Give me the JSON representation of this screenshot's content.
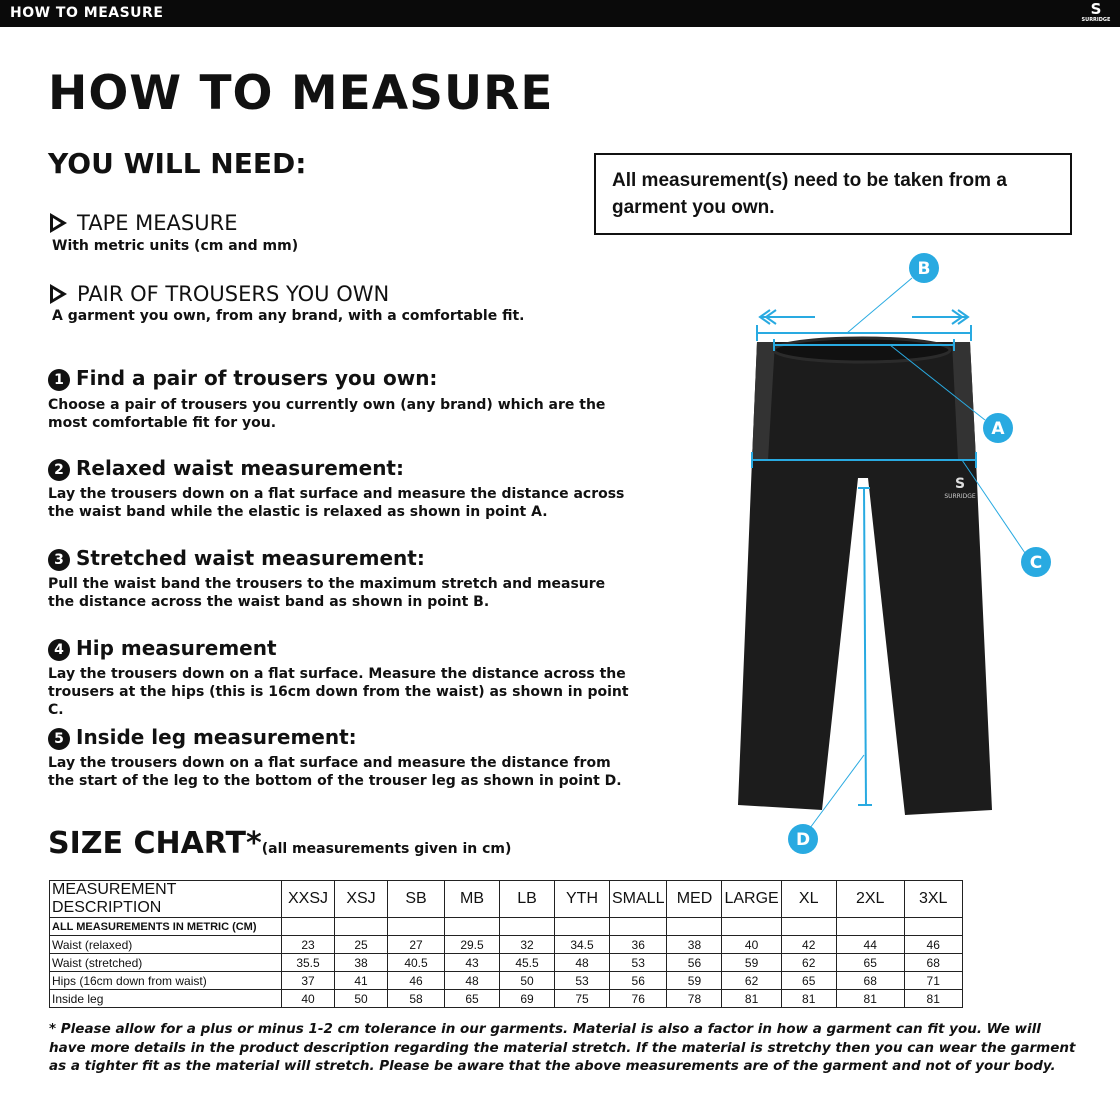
{
  "topbar": {
    "title": "HOW TO MEASURE",
    "brand": "SURRIDGE"
  },
  "heading": "HOW TO MEASURE",
  "need": {
    "title": "YOU WILL NEED:",
    "items": [
      {
        "label": "TAPE MEASURE",
        "desc": "With metric units (cm and mm)"
      },
      {
        "label": "PAIR OF TROUSERS YOU OWN",
        "desc": "A garment you own, from any brand, with a comfortable fit."
      }
    ]
  },
  "note": "All measurement(s) need to be taken from a garment you own.",
  "steps": [
    {
      "n": "1",
      "title": "Find a pair of trousers you own:",
      "desc": "Choose a pair of trousers you currently own (any brand) which are the most comfortable fit for you."
    },
    {
      "n": "2",
      "title": "Relaxed waist measurement:",
      "desc": "Lay the trousers down on a flat surface and measure the distance across the waist band while the elastic is relaxed as shown in point A."
    },
    {
      "n": "3",
      "title": "Stretched waist measurement:",
      "desc": "Pull the waist band the trousers to the maximum stretch and measure the distance across the waist band as shown in point B."
    },
    {
      "n": "4",
      "title": "Hip measurement",
      "desc": "Lay the trousers down on a flat surface. Measure the distance across the trousers at the hips (this is 16cm down from the waist) as shown in point C."
    },
    {
      "n": "5",
      "title": "Inside leg measurement:",
      "desc": "Lay the trousers down on a flat surface and measure the distance from the start of the leg to the bottom of the trouser leg as shown in point D."
    }
  ],
  "diagram": {
    "points": [
      "A",
      "B",
      "C",
      "D"
    ],
    "garment_logo": "SURRIDGE",
    "accent": "#29aae1"
  },
  "size_chart": {
    "title": "SIZE CHART*",
    "subtitle": "(all measurements given in cm)",
    "headers": [
      "MEASUREMENT DESCRIPTION",
      "XXSJ",
      "XSJ",
      "SB",
      "MB",
      "LB",
      "YTH",
      "SMALL",
      "MED",
      "LARGE",
      "XL",
      "2XL",
      "3XL"
    ],
    "subheader": "ALL MEASUREMENTS IN METRIC (CM)",
    "rows": [
      [
        "Waist (relaxed)",
        "23",
        "25",
        "27",
        "29.5",
        "32",
        "34.5",
        "36",
        "38",
        "40",
        "42",
        "44",
        "46"
      ],
      [
        "Waist (stretched)",
        "35.5",
        "38",
        "40.5",
        "43",
        "45.5",
        "48",
        "53",
        "56",
        "59",
        "62",
        "65",
        "68"
      ],
      [
        "Hips (16cm down from waist)",
        "37",
        "41",
        "46",
        "48",
        "50",
        "53",
        "56",
        "59",
        "62",
        "65",
        "68",
        "71"
      ],
      [
        "Inside leg",
        "40",
        "50",
        "58",
        "65",
        "69",
        "75",
        "76",
        "78",
        "81",
        "81",
        "81",
        "81"
      ]
    ]
  },
  "footnote": "* Please allow for a plus or minus 1-2 cm tolerance in our garments. Material is also a factor in how a garment can fit you. We will have more details in the product description regarding the material stretch.  If the material is stretchy then you can wear the garment as a tighter fit as the material will stretch.  Please be aware that the above measurements are of the garment and not of your body."
}
